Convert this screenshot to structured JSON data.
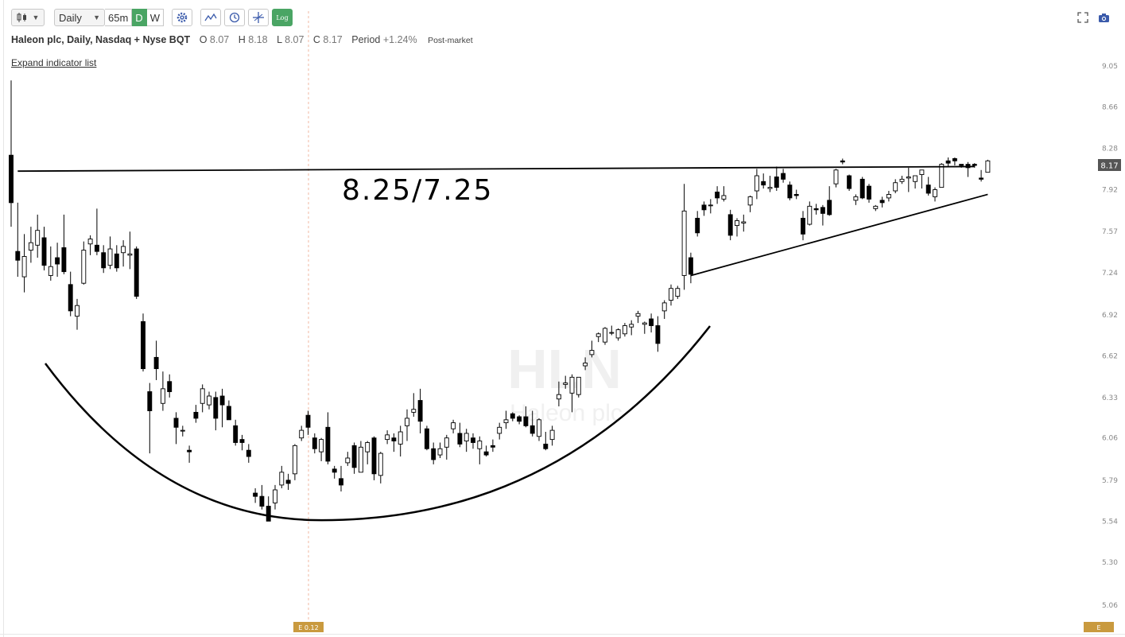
{
  "toolbar": {
    "chart_type_icon": "candlestick-icon",
    "interval_value": "Daily",
    "segments": [
      "65m",
      "D",
      "W"
    ],
    "active_segment": "D",
    "tool_icons": [
      "settings-gear-icon",
      "drawing-line-icon",
      "clock-icon",
      "crosshair-icon"
    ],
    "log_label": "Log",
    "accent_color": "#4aa564"
  },
  "legend": {
    "name": "Haleon plc, Daily, Nasdaq + Nyse BQT",
    "o_label": "O",
    "o_val": "8.07",
    "h_label": "H",
    "h_val": "8.18",
    "l_label": "L",
    "l_val": "8.07",
    "c_label": "C",
    "c_val": "8.17",
    "period_label": "Period",
    "period_val": "+1.24%",
    "post_market": "Post-market"
  },
  "expand_link": "Expand indicator list",
  "top_right_icons": [
    "fullscreen-icon",
    "camera-icon"
  ],
  "watermark": {
    "symbol": "HLN",
    "company": "Haleon plc"
  },
  "annotation": {
    "text": "8.25/7.25"
  },
  "chart_data": {
    "type": "candlestick",
    "title": "Haleon plc, Daily, Nasdaq + Nyse BQT",
    "y_ticks": [
      "9.05",
      "8.66",
      "8.28",
      "7.92",
      "7.57",
      "7.24",
      "6.92",
      "6.62",
      "6.33",
      "6.06",
      "5.79",
      "5.54",
      "5.30",
      "5.06"
    ],
    "y_tick_values": [
      9.05,
      8.66,
      8.28,
      7.92,
      7.57,
      7.24,
      6.92,
      6.62,
      6.33,
      6.06,
      5.79,
      5.54,
      5.3,
      5.06
    ],
    "scale": "log",
    "last_price": "8.17",
    "last_price_value": 8.17,
    "earnings_marker": "E 0.12",
    "future_earnings_marker": "E",
    "candles": [
      [
        8.22,
        8.91,
        7.61,
        7.81
      ],
      [
        7.41,
        7.81,
        7.21,
        7.34
      ],
      [
        7.21,
        7.55,
        7.09,
        7.37
      ],
      [
        7.42,
        7.61,
        7.32,
        7.48
      ],
      [
        7.46,
        7.71,
        7.36,
        7.58
      ],
      [
        7.52,
        7.61,
        7.26,
        7.3
      ],
      [
        7.22,
        7.45,
        7.18,
        7.29
      ],
      [
        7.36,
        7.48,
        7.21,
        7.31
      ],
      [
        7.44,
        7.71,
        7.23,
        7.25
      ],
      [
        7.15,
        7.25,
        6.91,
        6.95
      ],
      [
        6.91,
        7.04,
        6.81,
        6.99
      ],
      [
        7.16,
        7.49,
        7.15,
        7.42
      ],
      [
        7.47,
        7.54,
        7.38,
        7.51
      ],
      [
        7.46,
        7.76,
        7.38,
        7.41
      ],
      [
        7.4,
        7.46,
        7.24,
        7.28
      ],
      [
        7.3,
        7.53,
        7.27,
        7.43
      ],
      [
        7.39,
        7.46,
        7.25,
        7.28
      ],
      [
        7.4,
        7.5,
        7.29,
        7.45
      ],
      [
        7.38,
        7.57,
        7.27,
        7.39
      ],
      [
        7.43,
        7.45,
        7.04,
        7.06
      ],
      [
        6.87,
        6.93,
        6.51,
        6.53
      ],
      [
        6.37,
        6.43,
        5.96,
        6.24
      ],
      [
        6.61,
        6.73,
        6.45,
        6.53
      ],
      [
        6.29,
        6.51,
        6.24,
        6.39
      ],
      [
        6.44,
        6.49,
        6.33,
        6.37
      ],
      [
        6.19,
        6.23,
        6.02,
        6.13
      ],
      [
        6.11,
        6.14,
        6.07,
        6.11
      ],
      [
        5.98,
        6.01,
        5.9,
        5.97
      ],
      [
        6.23,
        6.28,
        6.16,
        6.19
      ],
      [
        6.29,
        6.42,
        6.23,
        6.39
      ],
      [
        6.28,
        6.37,
        6.25,
        6.34
      ],
      [
        6.33,
        6.37,
        6.11,
        6.19
      ],
      [
        6.34,
        6.39,
        6.13,
        6.28
      ],
      [
        6.27,
        6.31,
        6.18,
        6.18
      ],
      [
        6.14,
        6.18,
        6.01,
        6.03
      ],
      [
        6.05,
        6.08,
        5.98,
        6.03
      ],
      [
        5.98,
        6.02,
        5.9,
        5.94
      ],
      [
        5.71,
        5.74,
        5.65,
        5.69
      ],
      [
        5.69,
        5.76,
        5.61,
        5.63
      ],
      [
        5.63,
        5.69,
        5.56,
        5.54
      ],
      [
        5.65,
        5.76,
        5.61,
        5.73
      ],
      [
        5.76,
        5.88,
        5.74,
        5.84
      ],
      [
        5.79,
        5.83,
        5.73,
        5.77
      ],
      [
        5.83,
        6.02,
        5.79,
        6.01
      ],
      [
        6.06,
        6.14,
        6.04,
        6.11
      ],
      [
        6.21,
        6.24,
        6.08,
        6.13
      ],
      [
        6.06,
        6.09,
        5.96,
        5.99
      ],
      [
        5.97,
        6.06,
        5.91,
        6.05
      ],
      [
        6.13,
        6.23,
        5.89,
        5.91
      ],
      [
        5.86,
        5.88,
        5.8,
        5.84
      ],
      [
        5.8,
        5.88,
        5.72,
        5.76
      ],
      [
        5.9,
        5.97,
        5.88,
        5.93
      ],
      [
        6.01,
        6.03,
        5.83,
        5.87
      ],
      [
        5.84,
        6.04,
        5.84,
        6.0
      ],
      [
        5.97,
        6.04,
        5.89,
        6.03
      ],
      [
        6.06,
        6.07,
        5.79,
        5.83
      ],
      [
        5.82,
        5.97,
        5.77,
        5.96
      ],
      [
        6.05,
        6.11,
        6.02,
        6.08
      ],
      [
        6.06,
        6.09,
        5.97,
        6.04
      ],
      [
        6.02,
        6.14,
        5.94,
        6.1
      ],
      [
        6.14,
        6.25,
        6.04,
        6.19
      ],
      [
        6.23,
        6.36,
        6.2,
        6.25
      ],
      [
        6.31,
        6.39,
        6.09,
        6.17
      ],
      [
        6.12,
        6.14,
        5.98,
        5.99
      ],
      [
        5.99,
        6.03,
        5.89,
        5.92
      ],
      [
        5.95,
        6.03,
        5.93,
        5.99
      ],
      [
        6.0,
        6.08,
        5.92,
        6.06
      ],
      [
        6.12,
        6.18,
        6.09,
        6.16
      ],
      [
        6.09,
        6.16,
        6.0,
        6.02
      ],
      [
        6.04,
        6.12,
        5.97,
        6.09
      ],
      [
        6.06,
        6.09,
        5.99,
        6.03
      ],
      [
        5.99,
        6.07,
        5.89,
        6.04
      ],
      [
        5.97,
        6.01,
        5.94,
        5.95
      ],
      [
        6.01,
        6.05,
        5.97,
        6.0
      ],
      [
        6.09,
        6.16,
        6.05,
        6.13
      ],
      [
        6.16,
        6.24,
        6.12,
        6.18
      ],
      [
        6.22,
        6.23,
        6.17,
        6.19
      ],
      [
        6.2,
        6.21,
        6.15,
        6.17
      ],
      [
        6.2,
        6.27,
        6.13,
        6.14
      ],
      [
        6.14,
        6.24,
        6.07,
        6.09
      ],
      [
        6.07,
        6.19,
        6.04,
        6.18
      ],
      [
        6.02,
        6.1,
        5.98,
        5.99
      ],
      [
        6.05,
        6.14,
        6.01,
        6.11
      ],
      [
        6.32,
        6.44,
        6.27,
        6.35
      ],
      [
        6.42,
        6.48,
        6.39,
        6.43
      ],
      [
        6.36,
        6.49,
        6.23,
        6.47
      ],
      [
        6.35,
        6.47,
        6.33,
        6.47
      ],
      [
        6.55,
        6.61,
        6.52,
        6.57
      ],
      [
        6.63,
        6.73,
        6.61,
        6.66
      ],
      [
        6.76,
        6.79,
        6.72,
        6.78
      ],
      [
        6.72,
        6.83,
        6.7,
        6.82
      ],
      [
        6.79,
        6.84,
        6.77,
        6.79
      ],
      [
        6.75,
        6.82,
        6.73,
        6.81
      ],
      [
        6.78,
        6.86,
        6.76,
        6.84
      ],
      [
        6.83,
        6.88,
        6.77,
        6.85
      ],
      [
        6.91,
        6.95,
        6.86,
        6.93
      ],
      [
        6.85,
        6.87,
        6.78,
        6.86
      ],
      [
        6.89,
        6.93,
        6.79,
        6.84
      ],
      [
        6.84,
        6.91,
        6.65,
        6.71
      ],
      [
        6.95,
        7.03,
        6.89,
        7.01
      ],
      [
        7.03,
        7.15,
        6.99,
        7.12
      ],
      [
        7.06,
        7.14,
        7.04,
        7.12
      ],
      [
        7.22,
        7.97,
        7.11,
        7.74
      ],
      [
        7.36,
        7.4,
        7.16,
        7.23
      ],
      [
        7.68,
        7.74,
        7.53,
        7.56
      ],
      [
        7.79,
        7.82,
        7.7,
        7.75
      ],
      [
        7.79,
        7.84,
        7.72,
        7.79
      ],
      [
        7.9,
        7.95,
        7.8,
        7.85
      ],
      [
        7.84,
        7.95,
        7.82,
        7.87
      ],
      [
        7.71,
        7.75,
        7.5,
        7.54
      ],
      [
        7.62,
        7.68,
        7.53,
        7.66
      ],
      [
        7.64,
        7.71,
        7.57,
        7.65
      ],
      [
        7.79,
        7.87,
        7.73,
        7.86
      ],
      [
        7.91,
        8.1,
        7.84,
        8.04
      ],
      [
        7.99,
        8.06,
        7.93,
        7.96
      ],
      [
        7.93,
        8.04,
        7.9,
        7.94
      ],
      [
        8.03,
        8.12,
        7.91,
        7.94
      ],
      [
        8.06,
        8.1,
        7.98,
        8.01
      ],
      [
        7.96,
        7.99,
        7.83,
        7.85
      ],
      [
        7.88,
        7.92,
        7.84,
        7.87
      ],
      [
        7.68,
        7.74,
        7.5,
        7.55
      ],
      [
        7.63,
        7.82,
        7.62,
        7.78
      ],
      [
        7.76,
        7.8,
        7.71,
        7.75
      ],
      [
        7.77,
        7.79,
        7.62,
        7.72
      ],
      [
        7.83,
        7.95,
        7.7,
        7.71
      ],
      [
        7.97,
        8.1,
        7.94,
        8.09
      ],
      [
        8.17,
        8.19,
        8.14,
        8.16
      ],
      [
        8.04,
        8.05,
        7.91,
        7.93
      ],
      [
        7.83,
        7.88,
        7.79,
        7.86
      ],
      [
        8.01,
        8.03,
        7.84,
        7.85
      ],
      [
        7.95,
        7.97,
        7.81,
        7.84
      ],
      [
        7.76,
        7.79,
        7.74,
        7.78
      ],
      [
        7.83,
        7.86,
        7.77,
        7.81
      ],
      [
        7.85,
        7.91,
        7.82,
        7.88
      ],
      [
        7.91,
        8.01,
        7.89,
        7.98
      ],
      [
        7.99,
        8.04,
        7.97,
        8.01
      ],
      [
        8.02,
        8.11,
        7.9,
        8.03
      ],
      [
        7.99,
        8.03,
        7.93,
        8.04
      ],
      [
        8.05,
        8.07,
        7.93,
        8.09
      ],
      [
        7.96,
        8.03,
        7.87,
        7.89
      ],
      [
        7.86,
        7.94,
        7.82,
        7.92
      ],
      [
        7.94,
        8.15,
        7.94,
        8.14
      ],
      [
        8.17,
        8.2,
        8.12,
        8.15
      ],
      [
        8.19,
        8.2,
        8.13,
        8.17
      ],
      [
        8.14,
        8.14,
        8.11,
        8.13
      ],
      [
        8.14,
        8.16,
        8.03,
        8.11
      ],
      [
        8.14,
        8.15,
        8.11,
        8.13
      ],
      [
        8.02,
        8.09,
        7.99,
        8.01
      ],
      [
        8.07,
        8.18,
        8.07,
        8.17
      ]
    ],
    "trendlines": [
      {
        "from": [
          1,
          8.08
        ],
        "to": [
          146,
          8.12
        ]
      },
      {
        "from": [
          103,
          7.22
        ],
        "to": [
          148,
          7.88
        ]
      }
    ]
  }
}
